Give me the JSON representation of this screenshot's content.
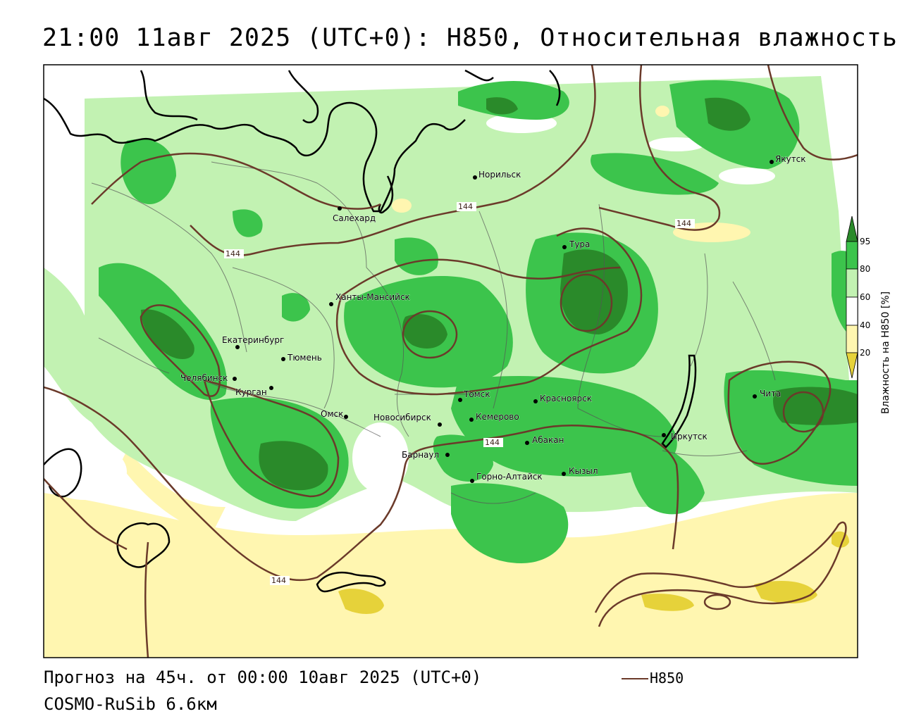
{
  "title": "21:00 11авг 2025 (UTC+0): H850, Относительная влажность",
  "footer": {
    "forecast": "Прогноз на 45ч. от 00:00 10авг 2025 (UTC+0)",
    "model": "COSMO-RuSib 6.6км",
    "legend_label": "H850"
  },
  "colorbar": {
    "title": "Влажность на H850 [%]",
    "ticks": [
      "95",
      "80",
      "60",
      "40",
      "20"
    ],
    "colors": {
      "c95": "#2a8a2a",
      "c80": "#3cc44c",
      "c60": "#c2f2b2",
      "c40": "#ffffff",
      "c20": "#fff6b0",
      "c10": "#e6d23a"
    }
  },
  "contour_label": "144",
  "colors": {
    "contour": "#6b3a2a",
    "coast": "#000000",
    "border": "#555555"
  },
  "cities": [
    {
      "name": "Салехард"
    },
    {
      "name": "Норильск"
    },
    {
      "name": "Якутск"
    },
    {
      "name": "Тура"
    },
    {
      "name": "Ханты-Мансийск"
    },
    {
      "name": "Екатеринбург"
    },
    {
      "name": "Тюмень"
    },
    {
      "name": "Челябинск"
    },
    {
      "name": "Курган"
    },
    {
      "name": "Омск"
    },
    {
      "name": "Новосибирск"
    },
    {
      "name": "Томск"
    },
    {
      "name": "Кемерово"
    },
    {
      "name": "Красноярск"
    },
    {
      "name": "Барнаул"
    },
    {
      "name": "Абакан"
    },
    {
      "name": "Иркутск"
    },
    {
      "name": "Чита"
    },
    {
      "name": "Кызыл"
    },
    {
      "name": "Горно-Алтайск"
    }
  ]
}
